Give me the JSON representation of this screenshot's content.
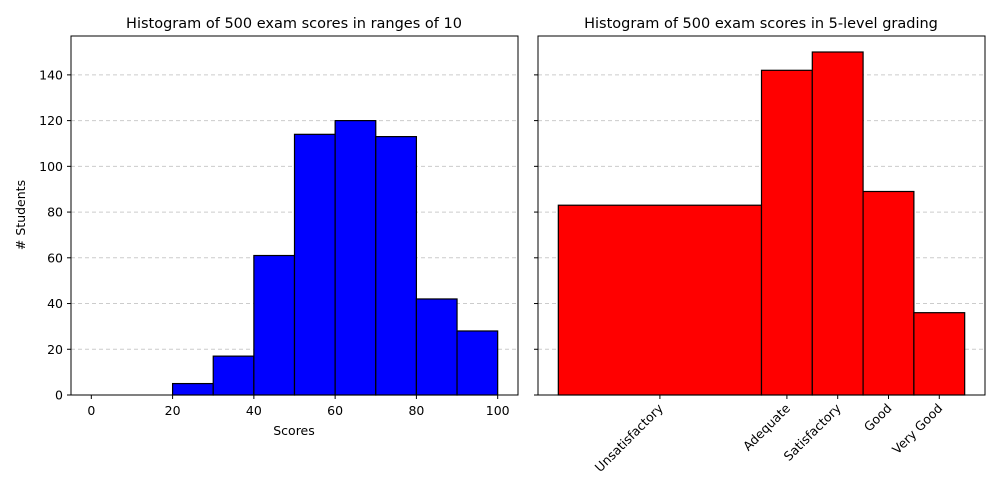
{
  "chart_data": [
    {
      "type": "bar",
      "title": "Histogram of 500 exam scores in ranges of 10",
      "xlabel": "Scores",
      "ylabel": "# Students",
      "bin_edges": [
        0,
        10,
        20,
        30,
        40,
        50,
        60,
        70,
        80,
        90,
        100
      ],
      "values": [
        0,
        0,
        5,
        17,
        61,
        114,
        120,
        113,
        42,
        28
      ],
      "xlim": [
        -5,
        105
      ],
      "ylim": [
        0,
        157
      ],
      "xticks": [
        0,
        20,
        40,
        60,
        80,
        100
      ],
      "yticks": [
        0,
        20,
        40,
        60,
        80,
        100,
        120,
        140
      ],
      "grid": "y-dashed",
      "color": "#0000ff"
    },
    {
      "type": "bar",
      "title": "Histogram of 500 exam scores in 5-level grading",
      "xlabel": "",
      "ylabel": "",
      "bin_edges": [
        0,
        40,
        50,
        60,
        70,
        80
      ],
      "values": [
        83,
        142,
        150,
        89,
        36
      ],
      "categories": [
        "Unsatisfactory",
        "Adequate",
        "Satisfactory",
        "Good",
        "Very Good"
      ],
      "category_tick_positions": [
        20,
        45,
        55,
        65,
        75
      ],
      "xlim": [
        -4,
        84
      ],
      "ylim": [
        0,
        157
      ],
      "yticks": [
        0,
        20,
        40,
        60,
        80,
        100,
        120,
        140
      ],
      "grid": "y-dashed",
      "color": "#ff0000"
    }
  ]
}
